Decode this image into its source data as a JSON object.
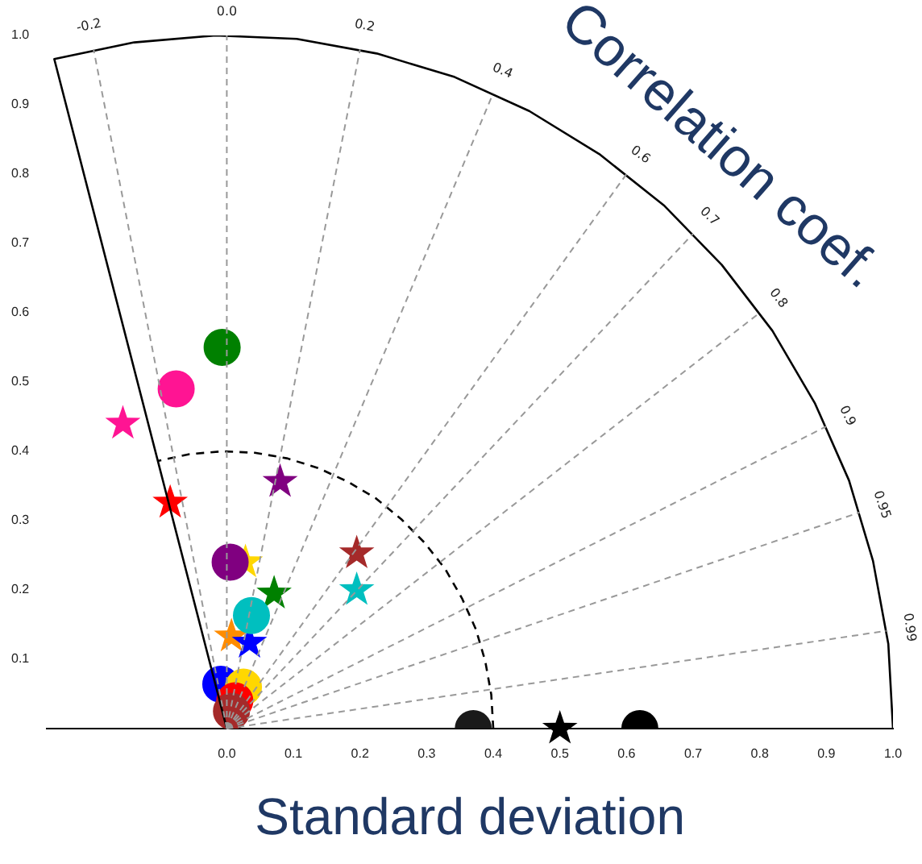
{
  "chart_data": {
    "type": "scatter",
    "xlabel": "Standard deviation",
    "xlim": [
      -0.27,
      1.0
    ],
    "ylim": [
      0,
      1.0
    ],
    "xticks": [
      {
        "value": 0,
        "label": "0.0"
      },
      {
        "value": 0.1,
        "label": "0.1"
      },
      {
        "value": 0.2,
        "label": "0.2"
      },
      {
        "value": 0.3,
        "label": "0.3"
      },
      {
        "value": 0.4,
        "label": "0.4"
      },
      {
        "value": 0.5,
        "label": "0.5"
      },
      {
        "value": 0.6,
        "label": "0.6"
      },
      {
        "value": 0.7,
        "label": "0.7"
      },
      {
        "value": 0.8,
        "label": "0.8"
      },
      {
        "value": 0.9,
        "label": "0.9"
      },
      {
        "value": 1.0,
        "label": "1.0"
      }
    ],
    "yticks": [
      {
        "value": 0.1,
        "label": "0.1"
      },
      {
        "value": 0.2,
        "label": "0.2"
      },
      {
        "value": 0.3,
        "label": "0.3"
      },
      {
        "value": 0.4,
        "label": "0.4"
      },
      {
        "value": 0.5,
        "label": "0.5"
      },
      {
        "value": 0.6,
        "label": "0.6"
      },
      {
        "value": 0.7,
        "label": "0.7"
      },
      {
        "value": 0.8,
        "label": "0.8"
      },
      {
        "value": 0.9,
        "label": "0.9"
      },
      {
        "value": 1.0,
        "label": "1.0"
      }
    ],
    "series": [
      {
        "type": "line",
        "color": "#000000",
        "line_style": "solid",
        "x": [
          1,
          0.993,
          0.97,
          0.934,
          0.883,
          0.819,
          0.743,
          0.656,
          0.559,
          0.454,
          0.342,
          0.225,
          0.105,
          -0.017,
          -0.139,
          -0.259,
          0
        ],
        "values": [
          0,
          0.122,
          0.242,
          0.358,
          0.469,
          0.574,
          0.669,
          0.755,
          0.829,
          0.891,
          0.94,
          0.974,
          0.995,
          1.0,
          0.99,
          0.966,
          0
        ]
      },
      {
        "type": "line",
        "color": "#000000",
        "line_style": "dashed",
        "x": [
          0.4,
          0.397,
          0.388,
          0.374,
          0.353,
          0.328,
          0.297,
          0.262,
          0.224,
          0.182,
          0.137,
          0.09,
          0.042,
          -0.007,
          -0.056,
          -0.104
        ],
        "values": [
          0,
          0.049,
          0.097,
          0.143,
          0.188,
          0.23,
          0.268,
          0.302,
          0.332,
          0.356,
          0.376,
          0.39,
          0.398,
          0.4,
          0.396,
          0.386
        ]
      },
      {
        "marker": "circle",
        "x": [
          -0.007,
          -0.076,
          0.005,
          0.037,
          -0.009,
          0.025,
          0.012,
          0.007,
          0.37,
          0.62
        ],
        "values": [
          0.55,
          0.49,
          0.24,
          0.163,
          0.064,
          0.06,
          0.04,
          0.025,
          0,
          0
        ],
        "colors": [
          "#008000",
          "#ff1493",
          "#800080",
          "#00bfbf",
          "#0000ff",
          "#ffd700",
          "#ff0000",
          "#a52a2a",
          "#1a1a1a",
          "#000000"
        ]
      },
      {
        "marker": "star",
        "x": [
          -0.156,
          -0.085,
          0.08,
          0.028,
          0.195,
          0.071,
          0.195,
          0.007,
          0.034,
          0.5
        ],
        "values": [
          0.44,
          0.326,
          0.356,
          0.24,
          0.253,
          0.195,
          0.2,
          0.133,
          0.124,
          0
        ],
        "colors": [
          "#ff1493",
          "#ff0000",
          "#800080",
          "#ffd700",
          "#a52a2a",
          "#008000",
          "#00bfbf",
          "#ff8c00",
          "#0000ff",
          "#000000"
        ]
      }
    ],
    "annotations": [
      "Correlation coef.",
      {
        "text": "-0.2",
        "x": -0.2,
        "y": 0.98
      },
      {
        "text": "0.0",
        "x": 0,
        "y": 1
      },
      {
        "text": "0.2",
        "x": 0.2,
        "y": 0.98
      },
      {
        "text": "0.4",
        "x": 0.4,
        "y": 0.917
      },
      {
        "text": "0.6",
        "x": 0.6,
        "y": 0.8
      },
      {
        "text": "0.7",
        "x": 0.7,
        "y": 0.714
      },
      {
        "text": "0.8",
        "x": 0.8,
        "y": 0.6
      },
      {
        "text": "0.9",
        "x": 0.9,
        "y": 0.436
      },
      {
        "text": "0.95",
        "x": 0.95,
        "y": 0.312
      },
      {
        "text": "0.99",
        "x": 0.99,
        "y": 0.141
      }
    ]
  }
}
